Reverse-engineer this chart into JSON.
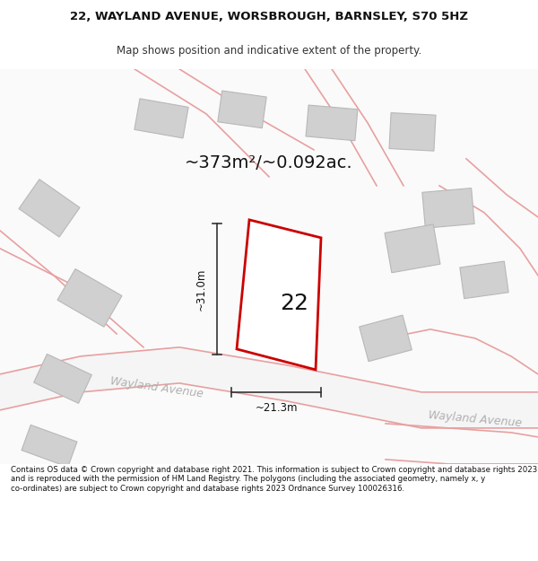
{
  "title": "22, WAYLAND AVENUE, WORSBROUGH, BARNSLEY, S70 5HZ",
  "subtitle": "Map shows position and indicative extent of the property.",
  "area_label": "~373m²/~0.092ac.",
  "house_number": "22",
  "dim_vertical": "~31.0m",
  "dim_horizontal": "~21.3m",
  "street_label_1": "Wayland Avenue",
  "street_label_2": "Wayland Avenue",
  "footer": "Contains OS data © Crown copyright and database right 2021. This information is subject to Crown copyright and database rights 2023 and is reproduced with the permission of HM Land Registry. The polygons (including the associated geometry, namely x, y co-ordinates) are subject to Crown copyright and database rights 2023 Ordnance Survey 100026316.",
  "bg_color": "#f5f5f5",
  "map_bg": "#ffffff",
  "plot_outline_color": "#cc0000",
  "street_color": "#f0c8c8",
  "building_color": "#d8d8d8",
  "building_outline": "#c8c8c8",
  "road_fill": "#e8e8e8",
  "text_color": "#333333",
  "street_text_color": "#b0b0b0"
}
